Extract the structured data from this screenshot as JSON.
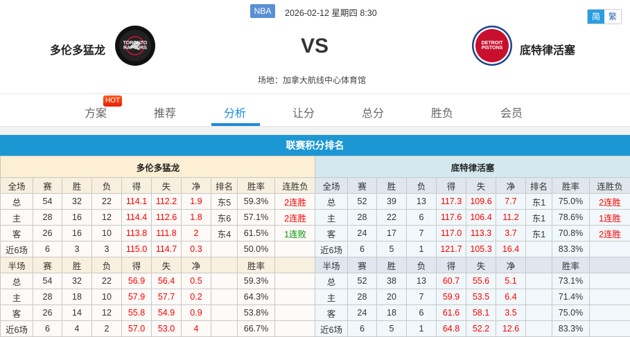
{
  "header": {
    "league": "NBA",
    "datetime": "2026-02-12 星期四 8:30",
    "lang_simplified": "简",
    "lang_traditional": "繁",
    "home_team": "多伦多猛龙",
    "away_team": "底特律活塞",
    "home_logo_text": "TORONTO RAPTORS",
    "away_logo_text": "DETROIT PISTONS",
    "vs": "VS",
    "venue": "场地：加拿大航线中心体育馆"
  },
  "tabs": [
    {
      "label": "方案",
      "badge": "HOT"
    },
    {
      "label": "推荐"
    },
    {
      "label": "分析",
      "active": true
    },
    {
      "label": "让分"
    },
    {
      "label": "总分"
    },
    {
      "label": "胜负"
    },
    {
      "label": "会员"
    }
  ],
  "section_title": "联赛积分排名",
  "colors": {
    "accent": "#1a8ad8",
    "title_bar": "#1c97d3",
    "positive": "#ff0000",
    "loss_streak": "#009900"
  },
  "tables": [
    {
      "team": "多伦多猛龙",
      "full_header": [
        "全场",
        "赛",
        "胜",
        "负",
        "得",
        "失",
        "净",
        "排名",
        "胜率",
        "连胜负"
      ],
      "full_rows": [
        [
          "总",
          "54",
          "32",
          "22",
          "114.1",
          "112.2",
          "1.9",
          "东5",
          "59.3%",
          "2连胜"
        ],
        [
          "主",
          "28",
          "16",
          "12",
          "114.4",
          "112.6",
          "1.8",
          "东6",
          "57.1%",
          "2连胜"
        ],
        [
          "客",
          "26",
          "16",
          "10",
          "113.8",
          "111.8",
          "2",
          "东4",
          "61.5%",
          "1连败"
        ],
        [
          "近6场",
          "6",
          "3",
          "3",
          "115.0",
          "114.7",
          "0.3",
          "",
          "50.0%",
          ""
        ]
      ],
      "half_header": [
        "半场",
        "赛",
        "胜",
        "负",
        "得",
        "失",
        "净",
        "",
        "胜率",
        ""
      ],
      "half_rows": [
        [
          "总",
          "54",
          "32",
          "22",
          "56.9",
          "56.4",
          "0.5",
          "",
          "59.3%",
          ""
        ],
        [
          "主",
          "28",
          "18",
          "10",
          "57.9",
          "57.7",
          "0.2",
          "",
          "64.3%",
          ""
        ],
        [
          "客",
          "26",
          "14",
          "12",
          "55.8",
          "54.9",
          "0.9",
          "",
          "53.8%",
          ""
        ],
        [
          "近6场",
          "6",
          "4",
          "2",
          "57.0",
          "53.0",
          "4",
          "",
          "66.7%",
          ""
        ]
      ]
    },
    {
      "team": "底特律活塞",
      "full_header": [
        "全场",
        "赛",
        "胜",
        "负",
        "得",
        "失",
        "净",
        "排名",
        "胜率",
        "连胜负"
      ],
      "full_rows": [
        [
          "总",
          "52",
          "39",
          "13",
          "117.3",
          "109.6",
          "7.7",
          "东1",
          "75.0%",
          "2连胜"
        ],
        [
          "主",
          "28",
          "22",
          "6",
          "117.6",
          "106.4",
          "11.2",
          "东1",
          "78.6%",
          "1连胜"
        ],
        [
          "客",
          "24",
          "17",
          "7",
          "117.0",
          "113.3",
          "3.7",
          "东1",
          "70.8%",
          "2连胜"
        ],
        [
          "近6场",
          "6",
          "5",
          "1",
          "121.7",
          "105.3",
          "16.4",
          "",
          "83.3%",
          ""
        ]
      ],
      "half_header": [
        "半场",
        "赛",
        "胜",
        "负",
        "得",
        "失",
        "净",
        "",
        "胜率",
        ""
      ],
      "half_rows": [
        [
          "总",
          "52",
          "38",
          "13",
          "60.7",
          "55.6",
          "5.1",
          "",
          "73.1%",
          ""
        ],
        [
          "主",
          "28",
          "20",
          "7",
          "59.9",
          "53.5",
          "6.4",
          "",
          "71.4%",
          ""
        ],
        [
          "客",
          "24",
          "18",
          "6",
          "61.6",
          "58.1",
          "3.5",
          "",
          "75.0%",
          ""
        ],
        [
          "近6场",
          "6",
          "5",
          "1",
          "64.8",
          "52.2",
          "12.6",
          "",
          "83.3%",
          ""
        ]
      ]
    }
  ]
}
